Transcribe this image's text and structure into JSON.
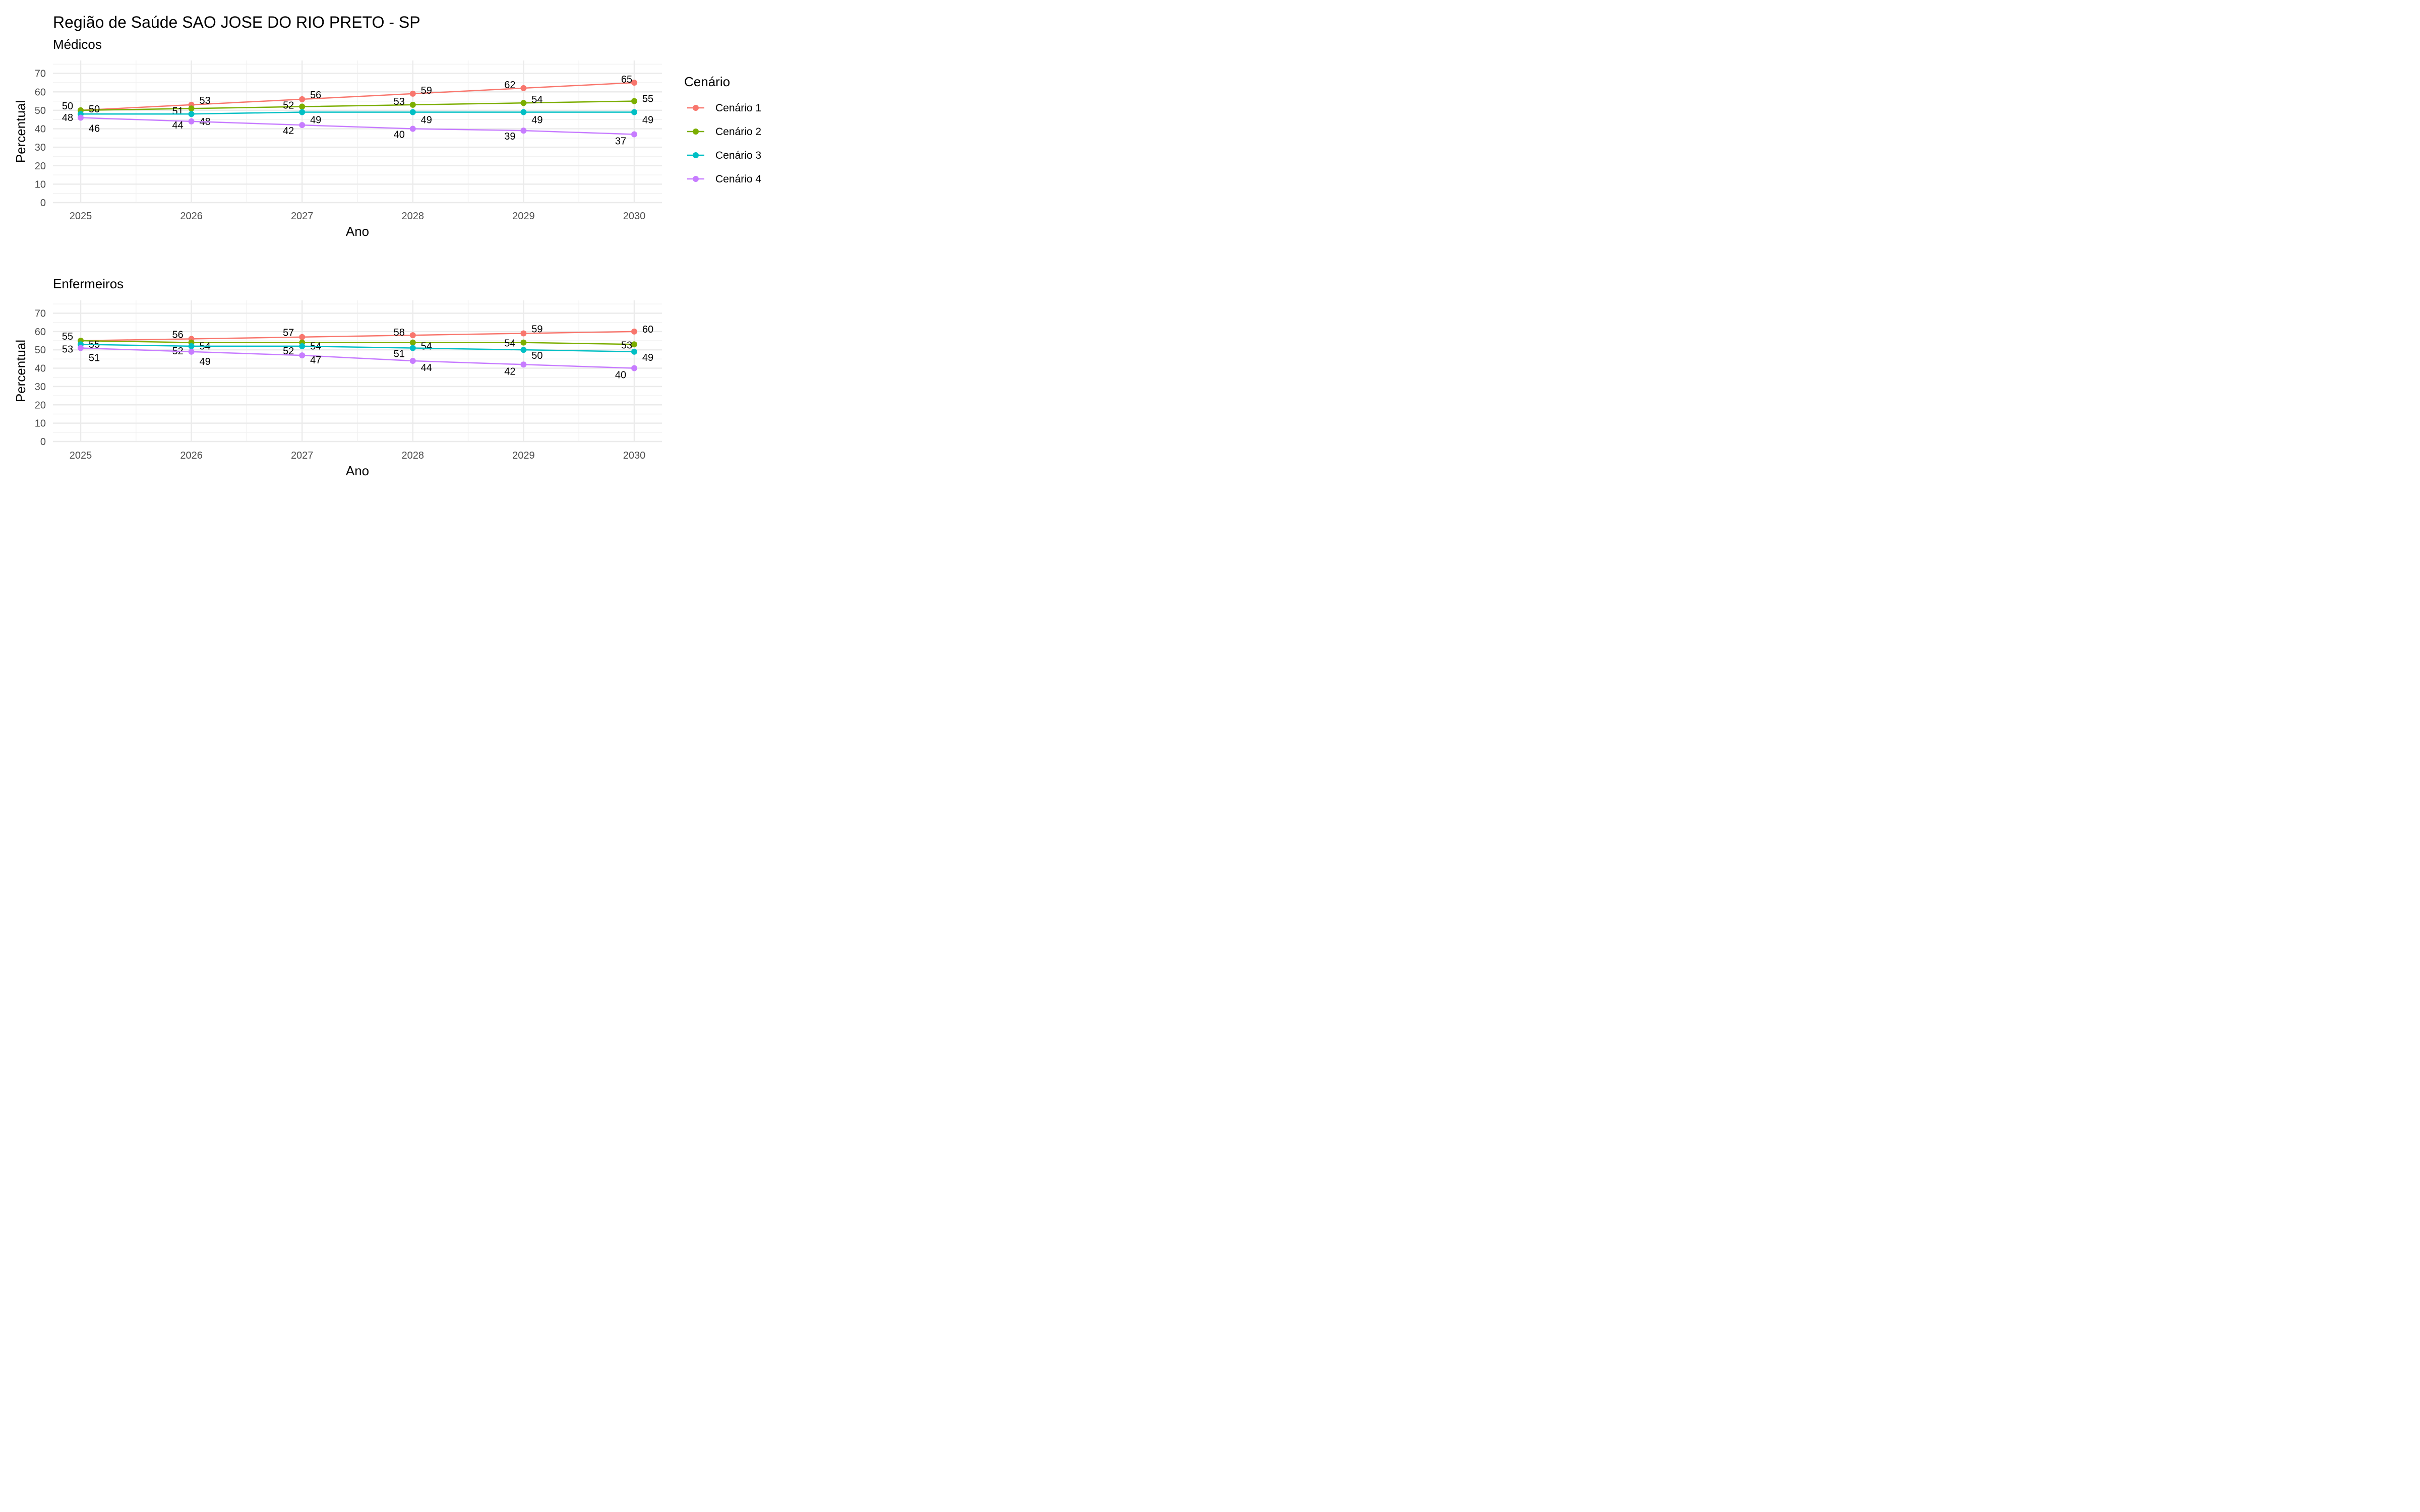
{
  "title": "Região de Saúde SAO JOSE DO RIO PRETO - SP",
  "legend": {
    "title": "Cenário",
    "position": "right",
    "items": [
      {
        "label": "Cenário 1",
        "color": "#F8766D"
      },
      {
        "label": "Cenário 2",
        "color": "#7CAE00"
      },
      {
        "label": "Cenário 3",
        "color": "#00BFC4"
      },
      {
        "label": "Cenário 4",
        "color": "#C77CFF"
      }
    ]
  },
  "chart_data": [
    {
      "type": "line",
      "subtitle": "Médicos",
      "xlabel": "Ano",
      "ylabel": "Percentual",
      "x": [
        2025,
        2026,
        2027,
        2028,
        2029,
        2030
      ],
      "x_ticks": [
        "2025",
        "2026",
        "2027",
        "2028",
        "2029",
        "2030"
      ],
      "y_ticks": [
        "0",
        "10",
        "20",
        "30",
        "40",
        "50",
        "60",
        "70"
      ],
      "ylim": [
        0,
        77
      ],
      "grid": true,
      "series": [
        {
          "name": "Cenário 1",
          "values": [
            50,
            53,
            56,
            59,
            62,
            65
          ]
        },
        {
          "name": "Cenário 2",
          "values": [
            50,
            51,
            52,
            53,
            54,
            55
          ]
        },
        {
          "name": "Cenário 3",
          "values": [
            48,
            48,
            49,
            49,
            49,
            49
          ]
        },
        {
          "name": "Cenário 4",
          "values": [
            46,
            44,
            42,
            40,
            39,
            37
          ]
        }
      ]
    },
    {
      "type": "line",
      "subtitle": "Enfermeiros",
      "xlabel": "Ano",
      "ylabel": "Percentual",
      "x": [
        2025,
        2026,
        2027,
        2028,
        2029,
        2030
      ],
      "x_ticks": [
        "2025",
        "2026",
        "2027",
        "2028",
        "2029",
        "2030"
      ],
      "y_ticks": [
        "0",
        "10",
        "20",
        "30",
        "40",
        "50",
        "60",
        "70"
      ],
      "ylim": [
        0,
        77
      ],
      "grid": true,
      "series": [
        {
          "name": "Cenário 1",
          "values": [
            55,
            56,
            57,
            58,
            59,
            60
          ]
        },
        {
          "name": "Cenário 2",
          "values": [
            55,
            54,
            54,
            54,
            54,
            53
          ]
        },
        {
          "name": "Cenário 3",
          "values": [
            53,
            52,
            52,
            51,
            50,
            49
          ]
        },
        {
          "name": "Cenário 4",
          "values": [
            51,
            49,
            47,
            44,
            42,
            40
          ]
        }
      ]
    }
  ]
}
